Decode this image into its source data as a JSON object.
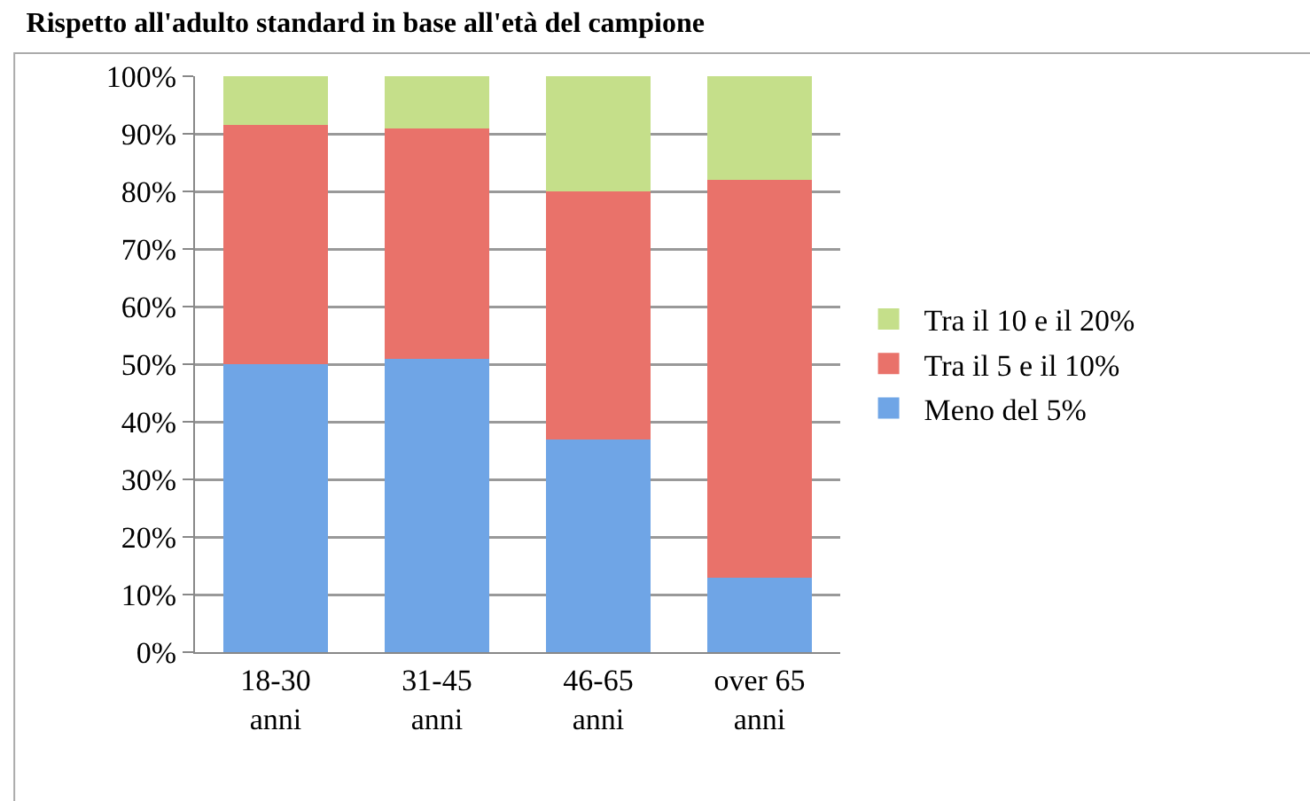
{
  "chart_data": {
    "type": "bar",
    "title": "Rispetto all'adulto standard in base all'età del campione",
    "stacked": true,
    "categories": [
      "18-30\nanni",
      "31-45\nanni",
      "46-65\nanni",
      "over 65\nanni"
    ],
    "series": [
      {
        "name": "Meno del 5%",
        "color": "#6fa5e6",
        "values": [
          50,
          51,
          37,
          13
        ]
      },
      {
        "name": "Tra il 5 e il 10%",
        "color": "#e9726a",
        "values": [
          41.5,
          40,
          43,
          69
        ]
      },
      {
        "name": "Tra il 10 e il 20%",
        "color": "#c5df8a",
        "values": [
          8.5,
          9,
          20,
          18
        ]
      }
    ],
    "ylim": [
      0,
      100
    ],
    "yticks": [
      {
        "value": 0,
        "label": "0%"
      },
      {
        "value": 10,
        "label": "10%"
      },
      {
        "value": 20,
        "label": "20%"
      },
      {
        "value": 30,
        "label": "30%"
      },
      {
        "value": 40,
        "label": "40%"
      },
      {
        "value": 50,
        "label": "50%"
      },
      {
        "value": 60,
        "label": "60%"
      },
      {
        "value": 70,
        "label": "70%"
      },
      {
        "value": 80,
        "label": "80%"
      },
      {
        "value": 90,
        "label": "90%"
      },
      {
        "value": 100,
        "label": "100%"
      }
    ],
    "grid": "y",
    "legend": "right"
  }
}
